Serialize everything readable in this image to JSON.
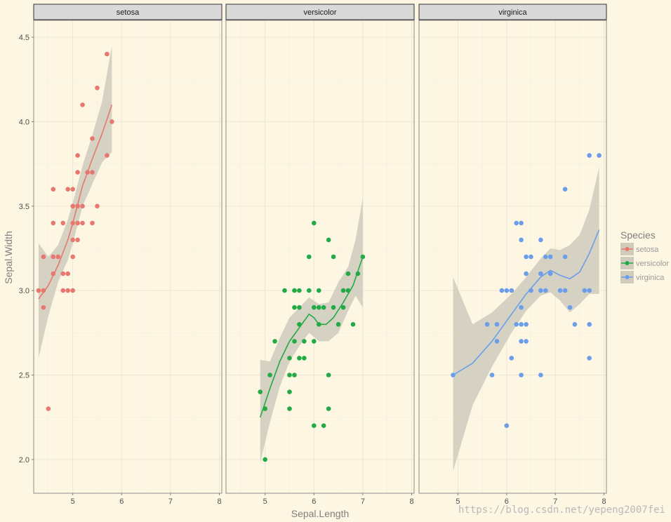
{
  "chart_data": {
    "type": "scatter",
    "facet_by": "Species",
    "xlabel": "Sepal.Length",
    "ylabel": "Sepal.Width",
    "xlim": [
      4.2,
      8.05
    ],
    "ylim": [
      1.8,
      4.6
    ],
    "x_ticks": [
      5,
      6,
      7,
      8
    ],
    "y_ticks": [
      2.0,
      2.5,
      3.0,
      3.5,
      4.0,
      4.5
    ],
    "y_tick_labels": [
      "2.0",
      "2.5",
      "3.0",
      "3.5",
      "4.0",
      "4.5"
    ],
    "grid": true,
    "smooth": "loess",
    "legend": {
      "title": "Species",
      "position": "right",
      "entries": [
        "setosa",
        "versicolor",
        "virginica"
      ]
    },
    "series": [
      {
        "name": "setosa",
        "color": "#e8786d",
        "points": [
          [
            4.3,
            3.0
          ],
          [
            4.4,
            2.9
          ],
          [
            4.4,
            3.0
          ],
          [
            4.4,
            3.2
          ],
          [
            4.5,
            2.3
          ],
          [
            4.6,
            3.1
          ],
          [
            4.6,
            3.2
          ],
          [
            4.6,
            3.4
          ],
          [
            4.6,
            3.6
          ],
          [
            4.7,
            3.2
          ],
          [
            4.8,
            3.0
          ],
          [
            4.8,
            3.1
          ],
          [
            4.8,
            3.4
          ],
          [
            4.9,
            3.0
          ],
          [
            4.9,
            3.1
          ],
          [
            4.9,
            3.6
          ],
          [
            5.0,
            3.0
          ],
          [
            5.0,
            3.2
          ],
          [
            5.0,
            3.3
          ],
          [
            5.0,
            3.4
          ],
          [
            5.0,
            3.5
          ],
          [
            5.0,
            3.6
          ],
          [
            5.1,
            3.3
          ],
          [
            5.1,
            3.4
          ],
          [
            5.1,
            3.5
          ],
          [
            5.1,
            3.7
          ],
          [
            5.1,
            3.8
          ],
          [
            5.2,
            3.4
          ],
          [
            5.2,
            3.5
          ],
          [
            5.2,
            4.1
          ],
          [
            5.3,
            3.7
          ],
          [
            5.4,
            3.4
          ],
          [
            5.4,
            3.7
          ],
          [
            5.4,
            3.9
          ],
          [
            5.5,
            3.5
          ],
          [
            5.5,
            4.2
          ],
          [
            5.7,
            3.8
          ],
          [
            5.7,
            4.4
          ],
          [
            5.8,
            4.0
          ]
        ],
        "fit": [
          [
            4.3,
            2.95
          ],
          [
            4.5,
            3.03
          ],
          [
            4.7,
            3.15
          ],
          [
            4.9,
            3.3
          ],
          [
            5.0,
            3.4
          ],
          [
            5.2,
            3.62
          ],
          [
            5.4,
            3.78
          ],
          [
            5.6,
            3.93
          ],
          [
            5.8,
            4.1
          ]
        ],
        "band": [
          [
            4.3,
            2.6,
            3.28
          ],
          [
            4.5,
            2.85,
            3.2
          ],
          [
            4.7,
            3.05,
            3.27
          ],
          [
            4.9,
            3.18,
            3.42
          ],
          [
            5.0,
            3.28,
            3.52
          ],
          [
            5.2,
            3.5,
            3.74
          ],
          [
            5.4,
            3.63,
            3.92
          ],
          [
            5.6,
            3.76,
            4.12
          ],
          [
            5.8,
            3.82,
            4.45
          ]
        ]
      },
      {
        "name": "versicolor",
        "color": "#22aa44",
        "points": [
          [
            4.9,
            2.4
          ],
          [
            5.0,
            2.0
          ],
          [
            5.0,
            2.3
          ],
          [
            5.1,
            2.5
          ],
          [
            5.2,
            2.7
          ],
          [
            5.4,
            3.0
          ],
          [
            5.5,
            2.3
          ],
          [
            5.5,
            2.4
          ],
          [
            5.5,
            2.5
          ],
          [
            5.5,
            2.6
          ],
          [
            5.6,
            2.5
          ],
          [
            5.6,
            2.7
          ],
          [
            5.6,
            2.9
          ],
          [
            5.6,
            3.0
          ],
          [
            5.7,
            2.6
          ],
          [
            5.7,
            2.8
          ],
          [
            5.7,
            2.9
          ],
          [
            5.7,
            3.0
          ],
          [
            5.8,
            2.6
          ],
          [
            5.8,
            2.7
          ],
          [
            5.9,
            3.0
          ],
          [
            5.9,
            3.2
          ],
          [
            6.0,
            2.2
          ],
          [
            6.0,
            2.7
          ],
          [
            6.0,
            2.9
          ],
          [
            6.0,
            3.4
          ],
          [
            6.1,
            2.8
          ],
          [
            6.1,
            2.9
          ],
          [
            6.1,
            3.0
          ],
          [
            6.2,
            2.2
          ],
          [
            6.2,
            2.9
          ],
          [
            6.3,
            2.3
          ],
          [
            6.3,
            2.5
          ],
          [
            6.3,
            3.3
          ],
          [
            6.4,
            2.9
          ],
          [
            6.4,
            3.2
          ],
          [
            6.5,
            2.8
          ],
          [
            6.6,
            2.9
          ],
          [
            6.6,
            3.0
          ],
          [
            6.7,
            3.0
          ],
          [
            6.7,
            3.1
          ],
          [
            6.8,
            2.8
          ],
          [
            6.9,
            3.1
          ],
          [
            7.0,
            3.2
          ]
        ],
        "fit": [
          [
            4.9,
            2.25
          ],
          [
            5.1,
            2.42
          ],
          [
            5.3,
            2.58
          ],
          [
            5.5,
            2.7
          ],
          [
            5.7,
            2.78
          ],
          [
            5.9,
            2.86
          ],
          [
            6.0,
            2.84
          ],
          [
            6.1,
            2.8
          ],
          [
            6.25,
            2.8
          ],
          [
            6.4,
            2.84
          ],
          [
            6.6,
            2.93
          ],
          [
            6.8,
            3.03
          ],
          [
            7.0,
            3.2
          ]
        ],
        "band": [
          [
            4.9,
            1.98,
            2.59
          ],
          [
            5.1,
            2.22,
            2.58
          ],
          [
            5.3,
            2.43,
            2.72
          ],
          [
            5.5,
            2.58,
            2.84
          ],
          [
            5.7,
            2.67,
            2.9
          ],
          [
            5.9,
            2.75,
            2.96
          ],
          [
            6.1,
            2.7,
            2.92
          ],
          [
            6.3,
            2.7,
            2.93
          ],
          [
            6.5,
            2.75,
            3.05
          ],
          [
            6.7,
            2.88,
            3.14
          ],
          [
            6.85,
            2.97,
            3.3
          ],
          [
            7.0,
            2.9,
            3.55
          ]
        ]
      },
      {
        "name": "virginica",
        "color": "#6b9dea",
        "points": [
          [
            4.9,
            2.5
          ],
          [
            5.6,
            2.8
          ],
          [
            5.7,
            2.5
          ],
          [
            5.8,
            2.7
          ],
          [
            5.8,
            2.8
          ],
          [
            5.9,
            3.0
          ],
          [
            6.0,
            2.2
          ],
          [
            6.0,
            3.0
          ],
          [
            6.1,
            2.6
          ],
          [
            6.1,
            3.0
          ],
          [
            6.2,
            2.8
          ],
          [
            6.2,
            3.4
          ],
          [
            6.3,
            2.5
          ],
          [
            6.3,
            2.7
          ],
          [
            6.3,
            2.8
          ],
          [
            6.3,
            2.9
          ],
          [
            6.3,
            3.3
          ],
          [
            6.3,
            3.4
          ],
          [
            6.4,
            2.7
          ],
          [
            6.4,
            2.8
          ],
          [
            6.4,
            3.1
          ],
          [
            6.4,
            3.2
          ],
          [
            6.5,
            3.0
          ],
          [
            6.5,
            3.2
          ],
          [
            6.7,
            2.5
          ],
          [
            6.7,
            3.0
          ],
          [
            6.7,
            3.1
          ],
          [
            6.7,
            3.3
          ],
          [
            6.8,
            3.0
          ],
          [
            6.8,
            3.2
          ],
          [
            6.9,
            3.1
          ],
          [
            6.9,
            3.2
          ],
          [
            7.1,
            3.0
          ],
          [
            7.2,
            3.0
          ],
          [
            7.2,
            3.2
          ],
          [
            7.2,
            3.6
          ],
          [
            7.3,
            2.9
          ],
          [
            7.4,
            2.8
          ],
          [
            7.6,
            3.0
          ],
          [
            7.7,
            2.6
          ],
          [
            7.7,
            2.8
          ],
          [
            7.7,
            3.0
          ],
          [
            7.7,
            3.8
          ],
          [
            7.9,
            3.8
          ]
        ],
        "fit": [
          [
            4.9,
            2.5
          ],
          [
            5.3,
            2.57
          ],
          [
            5.7,
            2.7
          ],
          [
            6.1,
            2.86
          ],
          [
            6.4,
            2.98
          ],
          [
            6.7,
            3.08
          ],
          [
            6.9,
            3.12
          ],
          [
            7.1,
            3.09
          ],
          [
            7.3,
            3.07
          ],
          [
            7.5,
            3.11
          ],
          [
            7.7,
            3.22
          ],
          [
            7.9,
            3.36
          ]
        ],
        "band": [
          [
            4.9,
            1.93,
            3.08
          ],
          [
            5.3,
            2.32,
            2.8
          ],
          [
            5.7,
            2.55,
            2.87
          ],
          [
            6.1,
            2.75,
            2.98
          ],
          [
            6.4,
            2.88,
            3.08
          ],
          [
            6.7,
            2.97,
            3.19
          ],
          [
            6.9,
            2.99,
            3.25
          ],
          [
            7.1,
            2.94,
            3.24
          ],
          [
            7.3,
            2.87,
            3.27
          ],
          [
            7.5,
            2.92,
            3.33
          ],
          [
            7.7,
            2.98,
            3.48
          ],
          [
            7.9,
            2.98,
            3.73
          ]
        ]
      }
    ]
  },
  "watermark": "https://blog.csdn.net/yepeng2007fei"
}
